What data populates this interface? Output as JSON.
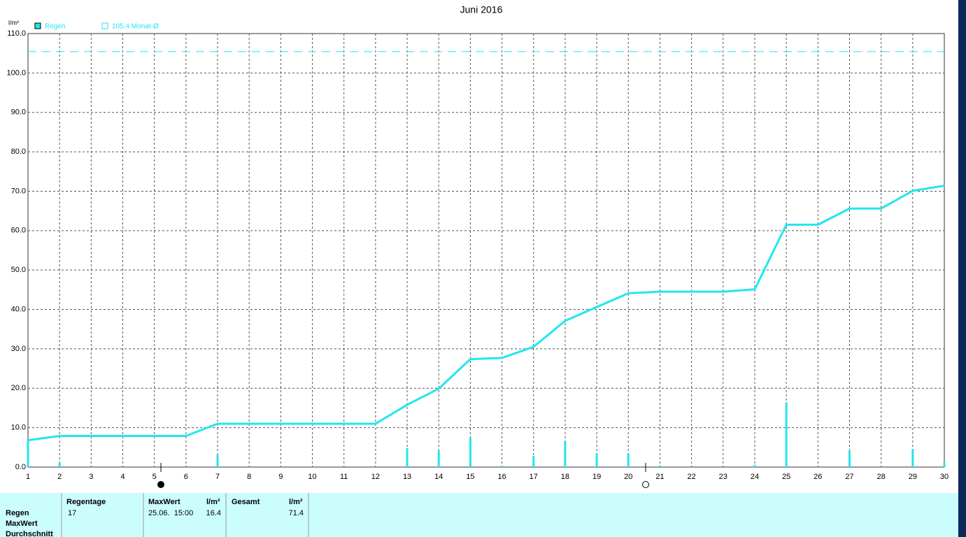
{
  "chart_data": {
    "type": "line",
    "title": "Juni 2016",
    "y_label": "l/m²",
    "x": [
      1,
      2,
      3,
      4,
      5,
      6,
      7,
      8,
      9,
      10,
      11,
      12,
      13,
      14,
      15,
      16,
      17,
      18,
      19,
      20,
      21,
      22,
      23,
      24,
      25,
      26,
      27,
      28,
      29,
      30
    ],
    "xlim": [
      1,
      30
    ],
    "xticks": [
      1,
      2,
      3,
      4,
      5,
      6,
      7,
      8,
      9,
      10,
      11,
      12,
      13,
      14,
      15,
      16,
      17,
      18,
      19,
      20,
      21,
      22,
      23,
      24,
      25,
      26,
      27,
      28,
      29,
      30
    ],
    "ylim": [
      0,
      110
    ],
    "yticks": [
      {
        "value": 0,
        "label": "0.0"
      },
      {
        "value": 10,
        "label": "10.0"
      },
      {
        "value": 20,
        "label": "20.0"
      },
      {
        "value": 30,
        "label": "30.0"
      },
      {
        "value": 40,
        "label": "40.0"
      },
      {
        "value": 50,
        "label": "50.0"
      },
      {
        "value": 60,
        "label": "60.0"
      },
      {
        "value": 70,
        "label": "70.0"
      },
      {
        "value": 80,
        "label": "80.0"
      },
      {
        "value": 90,
        "label": "90.0"
      },
      {
        "value": 100,
        "label": "100.0"
      },
      {
        "value": 110,
        "label": "110.0"
      }
    ],
    "grid": true,
    "legend": "top-left",
    "series": [
      {
        "name": "Regen",
        "type": "bar",
        "color": "#22e6ee",
        "values": [
          6.8,
          1.1,
          0,
          0,
          0,
          0,
          3.1,
          0,
          0,
          0,
          0,
          0,
          4.8,
          4.1,
          7.5,
          0.3,
          2.8,
          6.6,
          3.5,
          3.5,
          0.4,
          0,
          0,
          0.6,
          16.4,
          0,
          4.1,
          0,
          4.5,
          1.3
        ]
      },
      {
        "type": "line",
        "color": "#22e6ee",
        "values": [
          6.8,
          7.9,
          7.9,
          7.9,
          7.9,
          7.9,
          11.0,
          11.0,
          11.0,
          11.0,
          11.0,
          11.0,
          15.8,
          19.9,
          27.4,
          27.7,
          30.5,
          37.1,
          40.6,
          44.1,
          44.5,
          44.5,
          44.5,
          45.1,
          61.5,
          61.5,
          65.6,
          65.6,
          70.1,
          71.4
        ]
      }
    ],
    "reference_line": {
      "label": "105.4 Monat-Ø",
      "value": 105.4,
      "color": "#22e6ee"
    }
  },
  "table": {
    "headers": [
      "Regentage",
      "MaxWert",
      "l/m²",
      "Gesamt",
      "l/m²"
    ],
    "row_labels": [
      "Regen",
      "MaxWert",
      "Durchschnitt"
    ],
    "rows": [
      [
        "17",
        "25.06.  15:00",
        "16.4",
        "71.4"
      ]
    ]
  }
}
